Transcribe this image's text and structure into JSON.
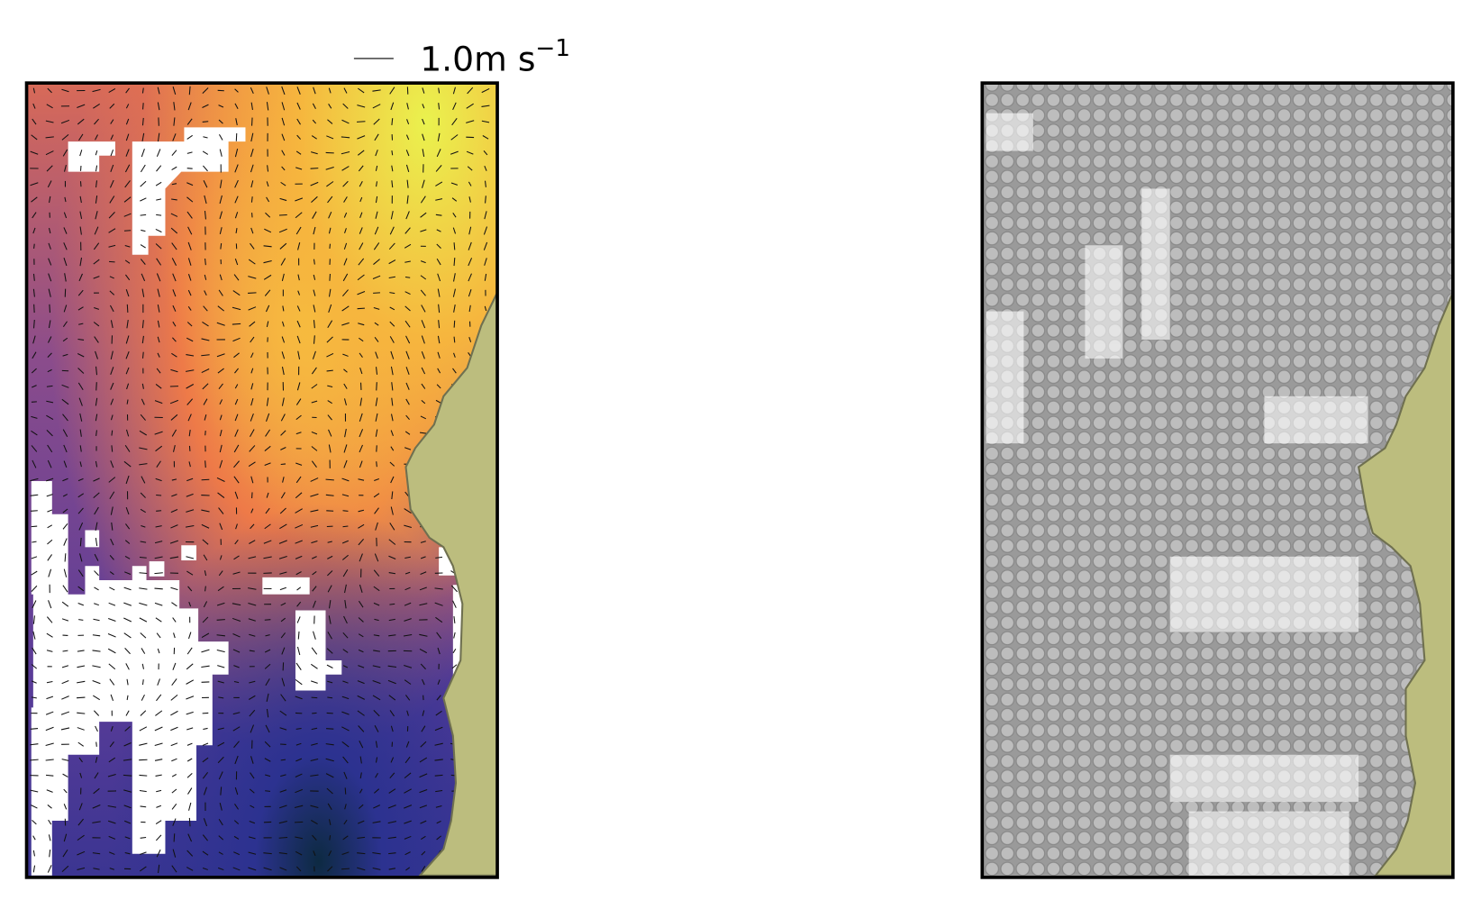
{
  "quiver_key": {
    "label": "1.0m s",
    "exponent": "−1"
  }
}
